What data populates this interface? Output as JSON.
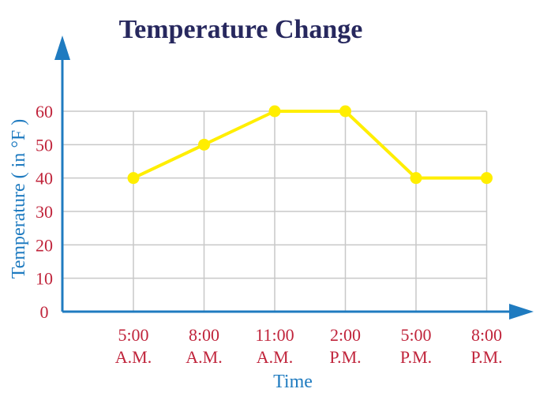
{
  "chart_data": {
    "type": "line",
    "title": "Temperature Change",
    "xlabel": "Time",
    "ylabel": "Temperature ( in °F )",
    "categories": [
      [
        "5:00",
        "A.M."
      ],
      [
        "8:00",
        "A.M."
      ],
      [
        "11:00",
        "A.M."
      ],
      [
        "2:00",
        "P.M."
      ],
      [
        "5:00",
        "P.M."
      ],
      [
        "8:00",
        "P.M."
      ]
    ],
    "series": [
      {
        "values": [
          40,
          50,
          60,
          60,
          40,
          40
        ]
      }
    ],
    "y_ticks": [
      0,
      10,
      20,
      30,
      40,
      50,
      60
    ],
    "ylim": [
      0,
      60
    ],
    "grid": true,
    "colors": {
      "line": "#ffee00",
      "axis": "#1f7bc0",
      "grid": "#c8c8c8",
      "tick_text": "#c0243b",
      "title": "#27285e",
      "axis_label": "#1f7bc0"
    }
  }
}
